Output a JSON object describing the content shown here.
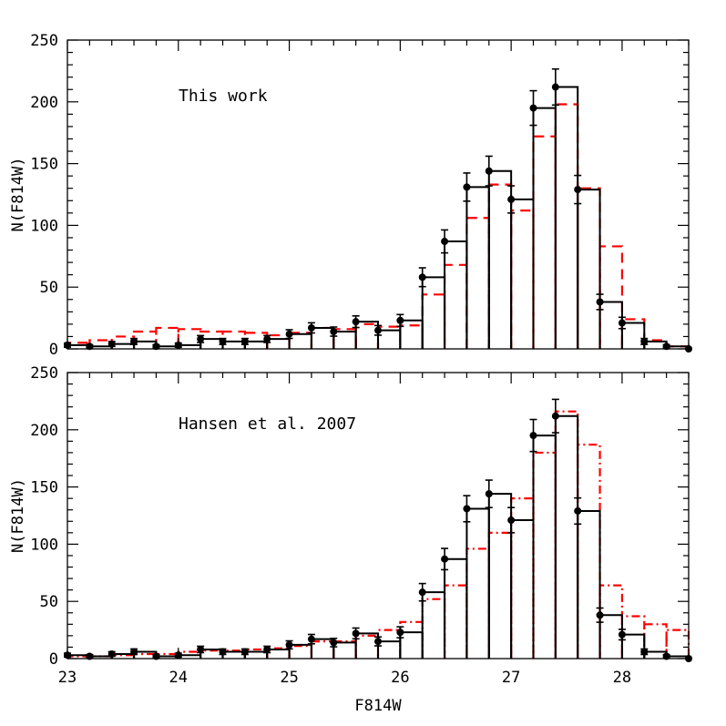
{
  "chart_data": [
    {
      "type": "bar",
      "annotation": "This work",
      "ylabel": "N(F814W)",
      "xlabel": "",
      "xlim": [
        23,
        28.6
      ],
      "ylim": [
        0,
        250
      ],
      "x_ticks": [
        "23",
        "24",
        "25",
        "26",
        "27",
        "28"
      ],
      "y_ticks": [
        "0",
        "50",
        "100",
        "150",
        "200",
        "250"
      ],
      "bin_edges": [
        23.0,
        23.2,
        23.4,
        23.6,
        23.8,
        24.0,
        24.2,
        24.4,
        24.6,
        24.8,
        25.0,
        25.2,
        25.4,
        25.6,
        25.8,
        26.0,
        26.2,
        26.4,
        26.6,
        26.8,
        27.0,
        27.2,
        27.4,
        27.6,
        27.8,
        28.0,
        28.2,
        28.4,
        28.6
      ],
      "series": [
        {
          "style": "solid",
          "color": "#000000",
          "values": [
            3,
            2,
            4,
            6,
            2,
            3,
            8,
            6,
            6,
            8,
            12,
            17,
            14,
            22,
            15,
            23,
            58,
            87,
            131,
            144,
            121,
            195,
            212,
            129,
            38,
            21,
            6,
            2
          ]
        },
        {
          "style": "dashed",
          "color": "#ff0000",
          "values": [
            5,
            7,
            10,
            14,
            17,
            16,
            14,
            14,
            13,
            11,
            13,
            17,
            16,
            20,
            18,
            19,
            44,
            68,
            106,
            133,
            112,
            172,
            198,
            130,
            83,
            24,
            7,
            2
          ]
        }
      ],
      "points": {
        "x": [
          23.0,
          23.2,
          23.4,
          23.6,
          23.8,
          24.0,
          24.2,
          24.4,
          24.6,
          24.8,
          25.0,
          25.2,
          25.4,
          25.6,
          25.8,
          26.0,
          26.2,
          26.4,
          26.6,
          26.8,
          27.0,
          27.2,
          27.4,
          27.6,
          27.8,
          28.0,
          28.2,
          28.4,
          28.6
        ],
        "y": [
          3,
          2,
          4,
          6,
          2,
          3,
          8,
          6,
          6,
          8,
          12,
          17,
          14,
          22,
          15,
          23,
          58,
          87,
          131,
          144,
          121,
          195,
          212,
          129,
          38,
          21,
          6,
          2,
          0
        ],
        "err": [
          1.7,
          1.4,
          2.0,
          2.4,
          1.4,
          1.7,
          2.8,
          2.4,
          2.4,
          2.8,
          3.5,
          4.1,
          3.7,
          4.7,
          3.9,
          4.8,
          7.6,
          9.3,
          11.4,
          12.0,
          11.0,
          14.0,
          14.6,
          11.4,
          6.2,
          4.6,
          2.4,
          1.4,
          0
        ]
      }
    },
    {
      "type": "bar",
      "annotation": "Hansen et al. 2007",
      "ylabel": "N(F814W)",
      "xlabel": "F814W",
      "xlim": [
        23,
        28.6
      ],
      "ylim": [
        0,
        250
      ],
      "x_ticks": [
        "23",
        "24",
        "25",
        "26",
        "27",
        "28"
      ],
      "y_ticks": [
        "0",
        "50",
        "100",
        "150",
        "200",
        "250"
      ],
      "bin_edges": [
        23.0,
        23.2,
        23.4,
        23.6,
        23.8,
        24.0,
        24.2,
        24.4,
        24.6,
        24.8,
        25.0,
        25.2,
        25.4,
        25.6,
        25.8,
        26.0,
        26.2,
        26.4,
        26.6,
        26.8,
        27.0,
        27.2,
        27.4,
        27.6,
        27.8,
        28.0,
        28.2,
        28.4,
        28.6
      ],
      "series": [
        {
          "style": "solid",
          "color": "#000000",
          "values": [
            3,
            2,
            4,
            6,
            2,
            3,
            8,
            6,
            6,
            8,
            12,
            17,
            14,
            22,
            15,
            23,
            58,
            87,
            131,
            144,
            121,
            195,
            212,
            129,
            38,
            21,
            6,
            2
          ]
        },
        {
          "style": "dash-dot",
          "color": "#ff0000",
          "values": [
            2,
            2,
            3,
            4,
            4,
            6,
            7,
            7,
            8,
            9,
            11,
            15,
            15,
            20,
            25,
            32,
            52,
            64,
            96,
            110,
            140,
            180,
            216,
            187,
            64,
            37,
            30,
            25
          ]
        }
      ],
      "points": {
        "x": [
          23.0,
          23.2,
          23.4,
          23.6,
          23.8,
          24.0,
          24.2,
          24.4,
          24.6,
          24.8,
          25.0,
          25.2,
          25.4,
          25.6,
          25.8,
          26.0,
          26.2,
          26.4,
          26.6,
          26.8,
          27.0,
          27.2,
          27.4,
          27.6,
          27.8,
          28.0,
          28.2,
          28.4,
          28.6
        ],
        "y": [
          3,
          2,
          4,
          6,
          2,
          3,
          8,
          6,
          6,
          8,
          12,
          17,
          14,
          22,
          15,
          23,
          58,
          87,
          131,
          144,
          121,
          195,
          212,
          129,
          38,
          21,
          6,
          2,
          0
        ],
        "err": [
          1.7,
          1.4,
          2.0,
          2.4,
          1.4,
          1.7,
          2.8,
          2.4,
          2.4,
          2.8,
          3.5,
          4.1,
          3.7,
          4.7,
          3.9,
          4.8,
          7.6,
          9.3,
          11.4,
          12.0,
          11.0,
          14.0,
          14.6,
          11.4,
          6.2,
          4.6,
          2.4,
          1.4,
          0
        ]
      }
    }
  ]
}
